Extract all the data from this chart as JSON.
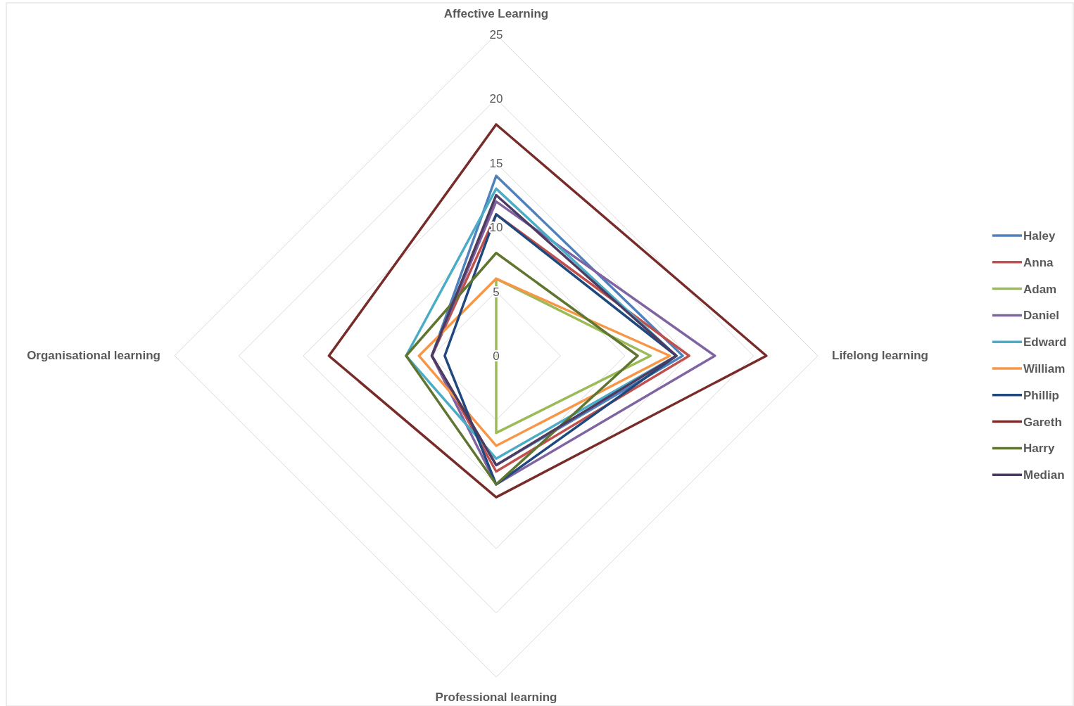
{
  "chart_data": {
    "type": "radar",
    "categories": [
      "Affective Learning",
      "Lifelong learning",
      "Professional learning",
      "Organisational learning"
    ],
    "ylim": [
      0,
      25
    ],
    "yticks": [
      0,
      5,
      10,
      15,
      20,
      25
    ],
    "grid": true,
    "legend": "right",
    "marker": "none",
    "series": [
      {
        "name": "Haley",
        "color": "#4f81bd",
        "values": [
          14,
          14.5,
          8.5,
          5
        ]
      },
      {
        "name": "Anna",
        "color": "#c0504d",
        "values": [
          11,
          15,
          9,
          5
        ]
      },
      {
        "name": "Adam",
        "color": "#9bbb59",
        "values": [
          6,
          12,
          6,
          0
        ]
      },
      {
        "name": "Daniel",
        "color": "#8064a2",
        "values": [
          12,
          17,
          10,
          5
        ]
      },
      {
        "name": "Edward",
        "color": "#4bacc6",
        "values": [
          13,
          14,
          8,
          7
        ]
      },
      {
        "name": "William",
        "color": "#f79646",
        "values": [
          6,
          13.5,
          7,
          6
        ]
      },
      {
        "name": "Phillip",
        "color": "#1f497d",
        "values": [
          11,
          14,
          10,
          4
        ]
      },
      {
        "name": "Gareth",
        "color": "#772c2a",
        "values": [
          18,
          21,
          11,
          13
        ]
      },
      {
        "name": "Harry",
        "color": "#5f7530",
        "values": [
          8,
          11,
          10,
          7
        ]
      },
      {
        "name": "Median",
        "color": "#4d3b62",
        "values": [
          12.5,
          14,
          8.5,
          5
        ]
      }
    ]
  }
}
